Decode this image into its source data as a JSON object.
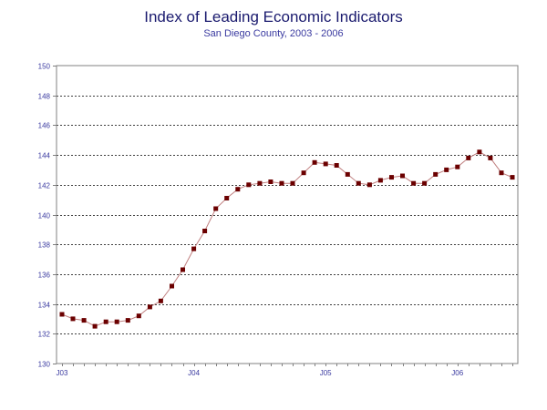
{
  "chart_data": {
    "type": "line",
    "title": "Index of Leading Economic Indicators",
    "subtitle": "San Diego County, 2003 - 2006",
    "xlabel": "",
    "ylabel": "",
    "ylim": [
      130,
      150
    ],
    "yticks": [
      "130",
      "132",
      "134",
      "136",
      "138",
      "140",
      "142",
      "144",
      "146",
      "148",
      "150"
    ],
    "xticks": [
      {
        "label": "J03",
        "index": 0
      },
      {
        "label": "J04",
        "index": 12
      },
      {
        "label": "J05",
        "index": 24
      },
      {
        "label": "J06",
        "index": 36
      }
    ],
    "grid": true,
    "legend": "none",
    "colors": {
      "line": "#c08080",
      "marker": "#6b0000",
      "grid": "#000000",
      "axis": "#808080",
      "tick_text": "#3a3aa0"
    },
    "series": [
      {
        "values": [
          133.3,
          133.0,
          132.9,
          132.5,
          132.8,
          132.8,
          132.9,
          133.2,
          133.8,
          134.2,
          135.2,
          136.3,
          137.7,
          138.9,
          140.4,
          141.1,
          141.7,
          142.0,
          142.1,
          142.2,
          142.1,
          142.1,
          142.8,
          143.5,
          143.4,
          143.3,
          142.7,
          142.1,
          142.0,
          142.3,
          142.5,
          142.6,
          142.1,
          142.1,
          142.7,
          143.0,
          143.2,
          143.8,
          144.2,
          143.8,
          142.8,
          142.5
        ]
      }
    ]
  }
}
